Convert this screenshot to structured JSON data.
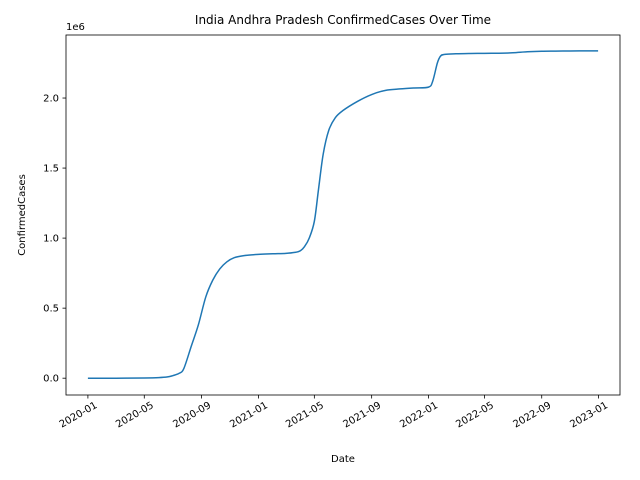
{
  "chart_data": {
    "type": "line",
    "title": "India Andhra Pradesh ConfirmedCases Over Time",
    "xlabel": "Date",
    "ylabel": "ConfirmedCases",
    "y_offset_label": "1e6",
    "xlim": [
      "2019-11-15",
      "2023-02-16"
    ],
    "ylim": [
      -120000,
      2450000
    ],
    "x_ticks": [
      "2020-01",
      "2020-05",
      "2020-09",
      "2021-01",
      "2021-05",
      "2021-09",
      "2022-01",
      "2022-05",
      "2022-09",
      "2023-01"
    ],
    "y_ticks": [
      0.0,
      0.5,
      1.0,
      1.5,
      2.0
    ],
    "y_tick_labels": [
      "0.0",
      "0.5",
      "1.0",
      "1.5",
      "2.0"
    ],
    "grid": false,
    "color": "#1f77b4",
    "series": [
      {
        "x": [
          "2020-01-01",
          "2020-03-01",
          "2020-05-01",
          "2020-06-01",
          "2020-06-20",
          "2020-07-01",
          "2020-07-15",
          "2020-07-25",
          "2020-08-10",
          "2020-08-25",
          "2020-09-10",
          "2020-09-25",
          "2020-10-10",
          "2020-10-25",
          "2020-11-10",
          "2020-12-01",
          "2021-01-01",
          "2021-02-01",
          "2021-03-01",
          "2021-03-20",
          "2021-04-01",
          "2021-04-10",
          "2021-04-20",
          "2021-05-01",
          "2021-05-10",
          "2021-05-20",
          "2021-06-01",
          "2021-06-15",
          "2021-07-01",
          "2021-08-01",
          "2021-09-01",
          "2021-10-01",
          "2021-11-01",
          "2021-12-01",
          "2022-01-01",
          "2022-01-10",
          "2022-01-20",
          "2022-01-27",
          "2022-02-05",
          "2022-03-01",
          "2022-04-01",
          "2022-05-01",
          "2022-06-01",
          "2022-07-01",
          "2022-08-01",
          "2022-09-01",
          "2022-10-01",
          "2022-11-01",
          "2022-12-01",
          "2022-12-31"
        ],
        "y": [
          0,
          0,
          1500,
          4000,
          9000,
          18000,
          35000,
          70000,
          230000,
          380000,
          580000,
          700000,
          780000,
          830000,
          860000,
          875000,
          884000,
          888000,
          891000,
          898000,
          910000,
          940000,
          1000000,
          1120000,
          1350000,
          1600000,
          1770000,
          1860000,
          1910000,
          1975000,
          2025000,
          2055000,
          2065000,
          2072000,
          2078000,
          2120000,
          2250000,
          2300000,
          2312000,
          2316000,
          2318000,
          2319000,
          2320000,
          2323000,
          2330000,
          2334000,
          2335000,
          2336000,
          2336500,
          2337000
        ]
      }
    ]
  }
}
